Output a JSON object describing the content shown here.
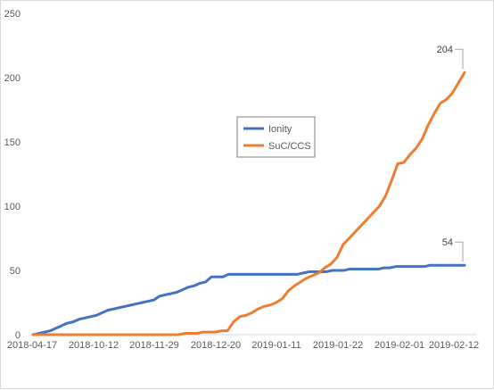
{
  "chart_data": {
    "type": "line",
    "title": "",
    "xlabel": "",
    "ylabel": "",
    "ylim": [
      0,
      250
    ],
    "y_ticks": [
      0,
      50,
      100,
      150,
      200,
      250
    ],
    "x_tick_labels": [
      "2018-04-17",
      "2018-10-12",
      "2018-11-29",
      "2018-12-20",
      "2019-01-11",
      "2019-01-22",
      "2019-02-01",
      "2019-02-12"
    ],
    "grid": false,
    "legend_position": "center",
    "series": [
      {
        "name": "Ionity",
        "color": "#4472C4",
        "values": [
          0,
          1,
          2,
          3,
          5,
          7,
          9,
          10,
          12,
          13,
          14,
          15,
          17,
          19,
          20,
          21,
          22,
          23,
          24,
          25,
          26,
          27,
          30,
          31,
          32,
          33,
          35,
          37,
          38,
          40,
          41,
          45,
          45,
          45,
          47,
          47,
          47,
          47,
          47,
          47,
          47,
          47,
          47,
          47,
          47,
          47,
          47,
          48,
          49,
          49,
          49,
          49,
          50,
          50,
          50,
          51,
          51,
          51,
          51,
          51,
          51,
          52,
          52,
          53,
          53,
          53,
          53,
          53,
          53,
          54,
          54,
          54,
          54,
          54,
          54,
          54
        ],
        "end_label": "54"
      },
      {
        "name": "SuC/CCS",
        "color": "#ED7D31",
        "values": [
          0,
          0,
          0,
          0,
          0,
          0,
          0,
          0,
          0,
          0,
          0,
          0,
          0,
          0,
          0,
          0,
          0,
          0,
          0,
          0,
          0,
          0,
          0,
          0,
          0,
          1,
          1,
          1,
          2,
          2,
          2,
          3,
          3,
          10,
          14,
          15,
          17,
          20,
          22,
          23,
          25,
          28,
          34,
          38,
          41,
          44,
          46,
          48,
          52,
          55,
          60,
          70,
          75,
          80,
          85,
          90,
          95,
          100,
          108,
          120,
          133,
          134,
          140,
          145,
          152,
          163,
          172,
          180,
          183,
          188,
          196,
          204
        ],
        "end_label": "204"
      }
    ]
  }
}
